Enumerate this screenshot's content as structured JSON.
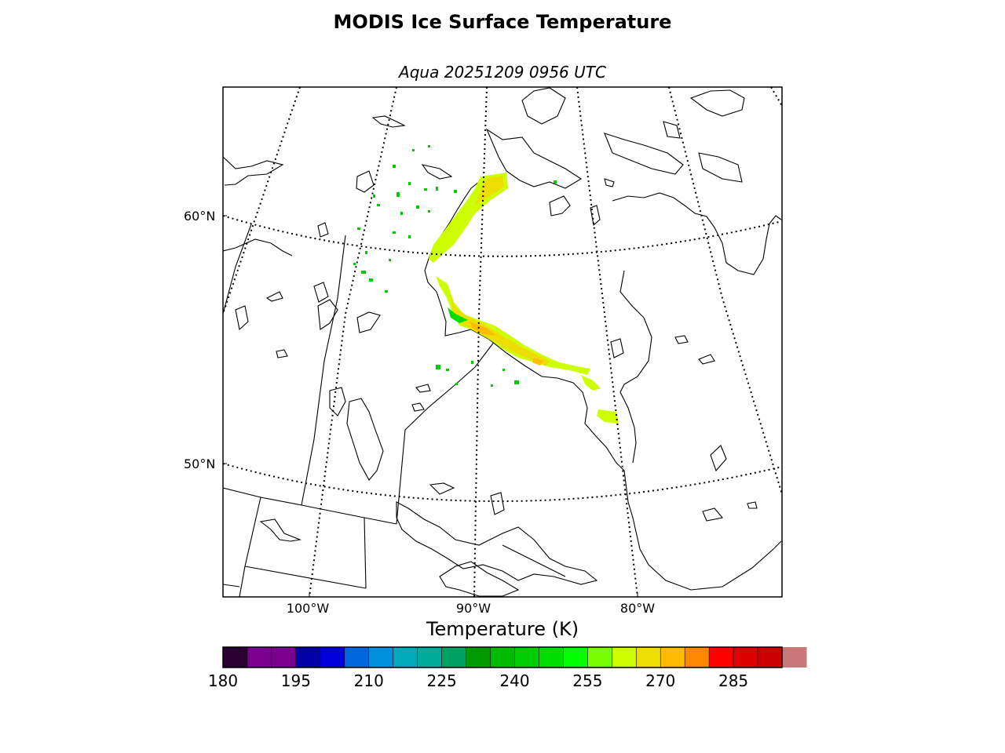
{
  "title": "MODIS Ice Surface Temperature",
  "subtitle": "Aqua 20251209 0956 UTC",
  "lat_labels": [
    "60°N",
    "50°N"
  ],
  "lon_labels": [
    "100°W",
    "90°W",
    "80°W"
  ],
  "colorbar": {
    "title": "Temperature (K)",
    "min": 180,
    "max": 295,
    "step": 5,
    "tick_labels": [
      "180",
      "195",
      "210",
      "225",
      "240",
      "255",
      "270",
      "285"
    ],
    "colors": [
      "#2a0033",
      "#7a0090",
      "#7a0090",
      "#0000a8",
      "#0000dd",
      "#0066dd",
      "#0090dd",
      "#00a8b8",
      "#00aa99",
      "#00a060",
      "#009900",
      "#00bb00",
      "#00cc00",
      "#00dd00",
      "#00ff00",
      "#77ff00",
      "#ccff00",
      "#eedd00",
      "#ffbb00",
      "#ff8800",
      "#ff0000",
      "#dd0000",
      "#cc0000",
      "#c87878"
    ]
  }
}
